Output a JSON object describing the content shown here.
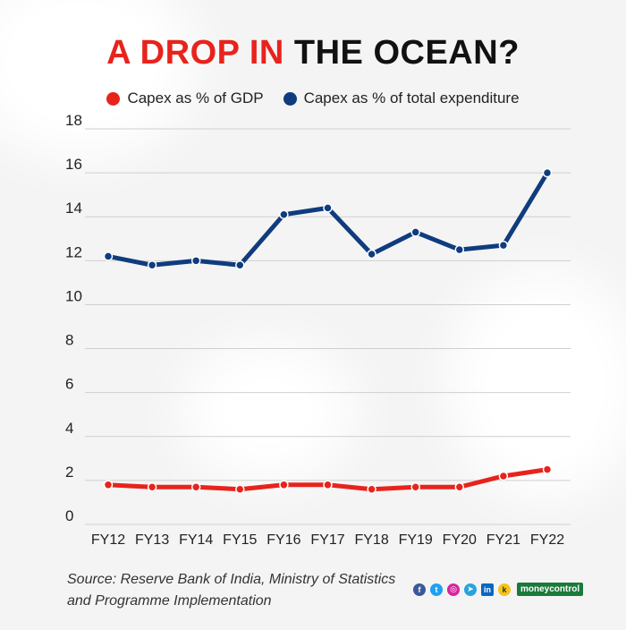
{
  "title": {
    "highlight": "A DROP IN",
    "rest": "THE OCEAN?"
  },
  "source": {
    "line1": "Source: Reserve Bank of India, Ministry of Statistics",
    "line2": "and Programme Implementation"
  },
  "footer": {
    "brand": "moneycontrol",
    "icons": [
      "facebook-icon",
      "twitter-icon",
      "instagram-icon",
      "telegram-icon",
      "linkedin-icon",
      "koo-icon"
    ]
  },
  "colors": {
    "gdp": "#e8231c",
    "expenditure": "#0f3c7e",
    "grid": "#cfcfcf"
  },
  "chart_data": {
    "type": "line",
    "title": "A DROP IN THE OCEAN?",
    "categories": [
      "FY12",
      "FY13",
      "FY14",
      "FY15",
      "FY16",
      "FY17",
      "FY18",
      "FY19",
      "FY20",
      "FY21",
      "FY22"
    ],
    "series": [
      {
        "name": "Capex as % of GDP",
        "values": [
          1.8,
          1.7,
          1.7,
          1.6,
          1.8,
          1.8,
          1.6,
          1.7,
          1.7,
          2.2,
          2.5
        ]
      },
      {
        "name": "Capex as % of total expenditure",
        "values": [
          12.2,
          11.8,
          12.0,
          11.8,
          14.1,
          14.4,
          12.3,
          13.3,
          12.5,
          12.7,
          16.0
        ]
      }
    ],
    "y_ticks": [
      0,
      2,
      4,
      6,
      8,
      10,
      12,
      14,
      16,
      18
    ],
    "ylim": [
      0,
      18
    ],
    "xlabel": "",
    "ylabel": "",
    "grid": true,
    "legend_position": "top-center"
  }
}
